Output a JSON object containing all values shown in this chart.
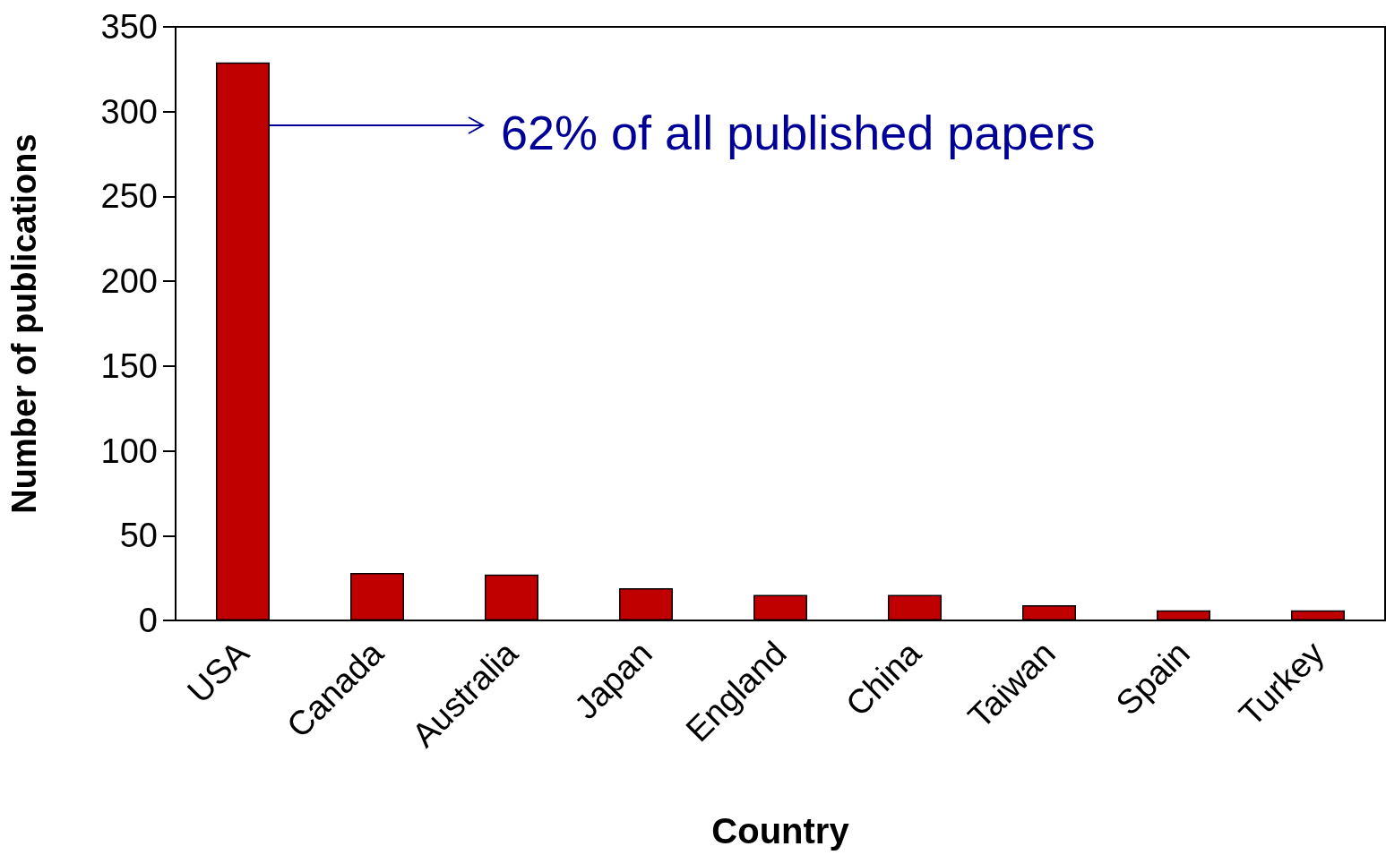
{
  "chart_data": {
    "type": "bar",
    "xlabel": "Country",
    "ylabel": "Number of publications",
    "categories": [
      "USA",
      "Canada",
      "Australia",
      "Japan",
      "England",
      "China",
      "Taiwan",
      "Spain",
      "Turkey"
    ],
    "values": [
      329,
      28,
      27,
      19,
      15,
      15,
      9,
      6,
      6
    ],
    "color": "#c00000",
    "ylim": [
      0,
      350
    ],
    "yticks": [
      0,
      50,
      100,
      150,
      200,
      250,
      300,
      350
    ],
    "grid": false,
    "annotations": [
      "62% of all published papers"
    ]
  }
}
